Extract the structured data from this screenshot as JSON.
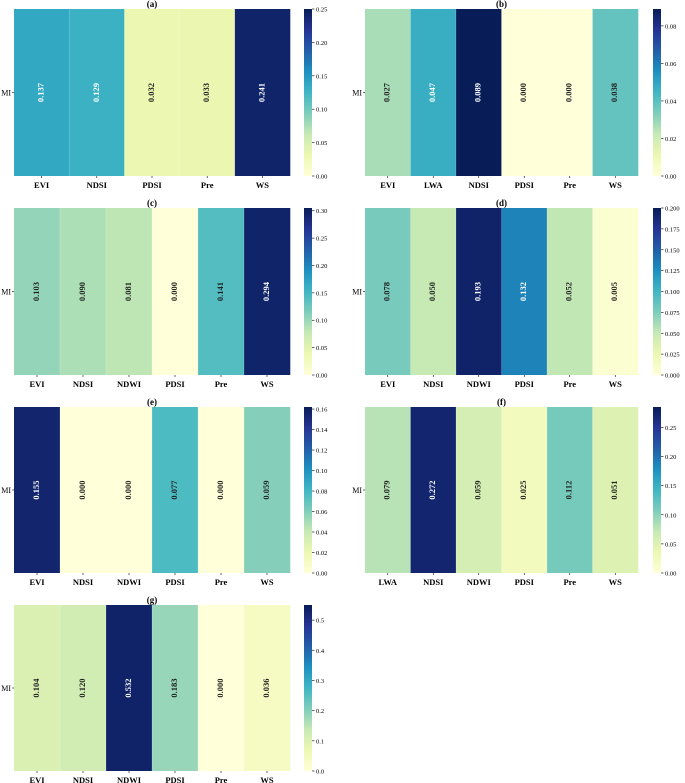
{
  "chart_data": [
    {
      "type": "heatmap",
      "title": "(a)",
      "row_label": "MI",
      "categories": [
        "EVI",
        "NDSI",
        "PDSI",
        "Pre",
        "WS"
      ],
      "values": [
        0.137,
        0.129,
        0.032,
        0.033,
        0.241
      ],
      "value_labels": [
        "0.137",
        "0.129",
        "0.032",
        "0.033",
        "0.241"
      ],
      "colorbar_range": [
        0,
        0.25
      ],
      "colorbar_ticks": [
        0.0,
        0.05,
        0.1,
        0.15,
        0.2,
        0.25
      ],
      "colorbar_tick_labels": [
        "0.00",
        "0.05",
        "0.10",
        "0.15",
        "0.20",
        "0.25"
      ],
      "colormap": "YlGnBu"
    },
    {
      "type": "heatmap",
      "title": "(b)",
      "row_label": "MI",
      "categories": [
        "EVI",
        "LWA",
        "NDSI",
        "PDSI",
        "Pre",
        "WS"
      ],
      "values": [
        0.027,
        0.047,
        0.089,
        0.0,
        0.0,
        0.038
      ],
      "value_labels": [
        "0.027",
        "0.047",
        "0.089",
        "0.000",
        "0.000",
        "0.038"
      ],
      "colorbar_range": [
        0,
        0.089
      ],
      "colorbar_ticks": [
        0.0,
        0.02,
        0.04,
        0.06,
        0.08
      ],
      "colorbar_tick_labels": [
        "0.00",
        "0.02",
        "0.04",
        "0.06",
        "0.08"
      ],
      "colormap": "YlGnBu"
    },
    {
      "type": "heatmap",
      "title": "(c)",
      "row_label": "MI",
      "categories": [
        "EVI",
        "NDSI",
        "NDWI",
        "PDSI",
        "Pre",
        "WS"
      ],
      "values": [
        0.103,
        0.09,
        0.081,
        0.0,
        0.141,
        0.294
      ],
      "value_labels": [
        "0.103",
        "0.090",
        "0.081",
        "0.000",
        "0.141",
        "0.294"
      ],
      "colorbar_range": [
        0,
        0.305
      ],
      "colorbar_ticks": [
        0.0,
        0.05,
        0.1,
        0.15,
        0.2,
        0.25,
        0.3
      ],
      "colorbar_tick_labels": [
        "0.00",
        "0.05",
        "0.10",
        "0.15",
        "0.20",
        "0.25",
        "0.30"
      ],
      "colormap": "YlGnBu"
    },
    {
      "type": "heatmap",
      "title": "(d)",
      "row_label": "MI",
      "categories": [
        "EVI",
        "NDSI",
        "NDWI",
        "PDSI",
        "Pre",
        "WS"
      ],
      "values": [
        0.078,
        0.05,
        0.193,
        0.132,
        0.052,
        0.005
      ],
      "value_labels": [
        "0.078",
        "0.050",
        "0.193",
        "0.132",
        "0.052",
        "0.005"
      ],
      "colorbar_range": [
        0,
        0.2
      ],
      "colorbar_ticks": [
        0.0,
        0.025,
        0.05,
        0.075,
        0.1,
        0.125,
        0.15,
        0.175,
        0.2
      ],
      "colorbar_tick_labels": [
        "0.000",
        "0.025",
        "0.050",
        "0.075",
        "0.100",
        "0.125",
        "0.150",
        "0.175",
        "0.200"
      ],
      "colormap": "YlGnBu"
    },
    {
      "type": "heatmap",
      "title": "(e)",
      "row_label": "MI",
      "categories": [
        "EVI",
        "NDSI",
        "NDWI",
        "PDSI",
        "Pre",
        "WS"
      ],
      "values": [
        0.155,
        0.0,
        0.0,
        0.077,
        0.0,
        0.059
      ],
      "value_labels": [
        "0.155",
        "0.000",
        "0.000",
        "0.077",
        "0.000",
        "0.059"
      ],
      "colorbar_range": [
        0,
        0.162
      ],
      "colorbar_ticks": [
        0.0,
        0.02,
        0.04,
        0.06,
        0.08,
        0.1,
        0.12,
        0.14,
        0.16
      ],
      "colorbar_tick_labels": [
        "0.00",
        "0.02",
        "0.04",
        "0.06",
        "0.08",
        "0.10",
        "0.12",
        "0.14",
        "0.16"
      ],
      "colormap": "YlGnBu"
    },
    {
      "type": "heatmap",
      "title": "(f)",
      "row_label": "MI",
      "categories": [
        "LWA",
        "NDSI",
        "NDWI",
        "PDSI",
        "Pre",
        "WS"
      ],
      "values": [
        0.079,
        0.272,
        0.059,
        0.025,
        0.112,
        0.051
      ],
      "value_labels": [
        "0.079",
        "0.272",
        "0.059",
        "0.025",
        "0.112",
        "0.051"
      ],
      "colorbar_range": [
        0,
        0.285
      ],
      "colorbar_ticks": [
        0.0,
        0.05,
        0.1,
        0.15,
        0.2,
        0.25
      ],
      "colorbar_tick_labels": [
        "0.00",
        "0.05",
        "0.10",
        "0.15",
        "0.20",
        "0.25"
      ],
      "colormap": "YlGnBu"
    },
    {
      "type": "heatmap",
      "title": "(g)",
      "row_label": "MI",
      "categories": [
        "EVI",
        "NDSI",
        "NDWI",
        "PDSI",
        "Pre",
        "WS"
      ],
      "values": [
        0.104,
        0.12,
        0.532,
        0.183,
        0.0,
        0.036
      ],
      "value_labels": [
        "0.104",
        "0.120",
        "0.532",
        "0.183",
        "0.000",
        "0.036"
      ],
      "colorbar_range": [
        0,
        0.55
      ],
      "colorbar_ticks": [
        0.0,
        0.1,
        0.2,
        0.3,
        0.4,
        0.5
      ],
      "colorbar_tick_labels": [
        "0.0",
        "0.1",
        "0.2",
        "0.3",
        "0.4",
        "0.5"
      ],
      "colormap": "YlGnBu"
    }
  ]
}
